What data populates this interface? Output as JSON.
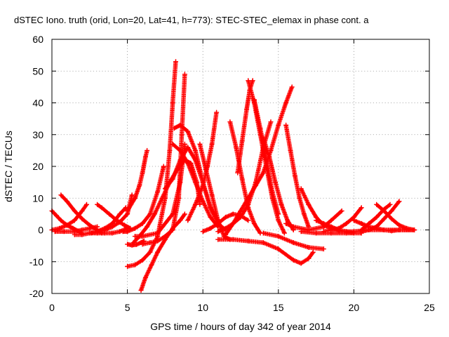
{
  "chart_data": {
    "type": "scatter",
    "title": "dSTEC Iono. truth (orid, Lon=20, Lat=41, h=773): STEC-STEC_elemax in phase cont. a",
    "xlabel": "GPS time / hours of day 342 of year 2014",
    "ylabel": "dSTEC  / TECUs",
    "xlim": [
      0,
      25
    ],
    "ylim": [
      -20,
      60
    ],
    "x_ticks": [
      "0",
      "5",
      "10",
      "15",
      "20",
      "25"
    ],
    "y_ticks": [
      "-20",
      "-10",
      "0",
      "10",
      "20",
      "30",
      "40",
      "50",
      "60"
    ],
    "grid": true,
    "marker": "+",
    "color": "#ff0000",
    "series": [
      {
        "x": [
          0.0,
          0.3,
          0.6,
          1.0,
          1.4,
          1.8,
          2.0
        ],
        "y": [
          6.0,
          4.5,
          3.0,
          1.5,
          0.5,
          -0.5,
          -1.0
        ]
      },
      {
        "x": [
          0.0,
          0.5,
          1.0,
          1.5,
          2.0,
          2.3
        ],
        "y": [
          0.0,
          0.5,
          1.5,
          3.0,
          6.0,
          8.0
        ]
      },
      {
        "x": [
          0.6,
          1.0,
          1.5,
          2.0,
          2.5,
          3.0,
          3.3
        ],
        "y": [
          11.0,
          9.0,
          6.0,
          3.5,
          1.5,
          0.0,
          -1.0
        ]
      },
      {
        "x": [
          0.2,
          0.8,
          1.5,
          2.0,
          2.5,
          3.0
        ],
        "y": [
          -0.5,
          -0.5,
          -0.5,
          0.0,
          0.5,
          1.0
        ]
      },
      {
        "x": [
          1.5,
          2.0,
          2.5,
          3.0,
          3.5,
          4.0,
          4.5,
          4.9
        ],
        "y": [
          -1.5,
          -1.5,
          -1.0,
          -0.5,
          0.5,
          2.0,
          5.0,
          7.0
        ]
      },
      {
        "x": [
          3.0,
          3.3,
          3.8,
          4.3,
          4.8,
          5.2
        ],
        "y": [
          8.0,
          7.0,
          5.0,
          3.0,
          1.5,
          0.5
        ]
      },
      {
        "x": [
          3.0,
          3.5,
          4.0,
          4.5,
          5.0,
          5.3
        ],
        "y": [
          -0.5,
          0.0,
          1.0,
          2.5,
          5.0,
          11.0
        ]
      },
      {
        "x": [
          2.6,
          3.0,
          3.5,
          4.0,
          4.5,
          5.0
        ],
        "y": [
          -1.0,
          -1.0,
          -1.0,
          -1.0,
          -0.5,
          0.5
        ]
      },
      {
        "x": [
          4.7,
          5.0,
          5.5,
          6.0,
          6.5,
          7.0,
          7.4
        ],
        "y": [
          -0.5,
          -0.5,
          0.5,
          2.0,
          5.0,
          12.0,
          20.0
        ]
      },
      {
        "x": [
          5.0,
          5.5,
          5.8,
          6.0,
          6.2,
          6.3
        ],
        "y": [
          6.0,
          10.0,
          14.0,
          18.0,
          23.0,
          25.0
        ]
      },
      {
        "x": [
          5.0,
          5.3,
          5.6,
          5.9,
          6.1
        ],
        "y": [
          -4.5,
          -4.8,
          -4.6,
          -4.0,
          -3.5
        ]
      },
      {
        "x": [
          5.0,
          5.5,
          6.0,
          6.5,
          7.0,
          7.5,
          7.8,
          8.0,
          8.2
        ],
        "y": [
          -11.5,
          -11.0,
          -9.5,
          -7.0,
          -2.0,
          10.0,
          25.0,
          40.0,
          53.0
        ]
      },
      {
        "x": [
          5.9,
          6.2,
          6.6,
          7.0,
          7.5,
          8.0,
          8.5,
          8.8
        ],
        "y": [
          -19.0,
          -15.0,
          -11.0,
          -7.0,
          -3.0,
          0.5,
          3.0,
          5.0
        ]
      },
      {
        "x": [
          5.5,
          6.0,
          7.0,
          8.0,
          8.5,
          8.8
        ],
        "y": [
          -2.0,
          -2.0,
          -1.0,
          5.0,
          15.0,
          27.0
        ]
      },
      {
        "x": [
          6.0,
          6.5,
          7.0,
          7.5,
          8.0,
          8.4,
          8.6,
          8.8
        ],
        "y": [
          -4.5,
          -4.0,
          -3.5,
          -2.0,
          0.0,
          10.0,
          30.0,
          49.0
        ]
      },
      {
        "x": [
          5.4,
          5.8,
          6.3,
          6.8,
          7.3,
          7.8,
          8.3,
          8.8,
          9.2,
          9.6,
          9.8
        ],
        "y": [
          -4.0,
          -2.0,
          1.0,
          5.0,
          10.0,
          15.0,
          19.0,
          22.0,
          21.0,
          15.0,
          8.0
        ]
      },
      {
        "x": [
          8.1,
          8.5,
          9.0,
          9.5,
          10.0,
          10.5,
          11.0,
          11.5
        ],
        "y": [
          32.0,
          33.0,
          31.0,
          25.0,
          15.0,
          7.0,
          2.0,
          0.0
        ]
      },
      {
        "x": [
          8.0,
          8.5,
          9.0,
          9.5,
          10.0,
          10.5,
          11.0
        ],
        "y": [
          27.0,
          25.0,
          21.0,
          15.0,
          9.0,
          4.0,
          1.0
        ]
      },
      {
        "x": [
          7.5,
          8.0,
          8.5,
          9.0,
          9.5,
          10.0,
          10.5,
          11.0
        ],
        "y": [
          13.0,
          16.0,
          22.0,
          26.0,
          22.0,
          15.0,
          7.0,
          3.0
        ]
      },
      {
        "x": [
          9.0,
          9.5,
          10.0,
          10.3,
          10.6,
          10.9
        ],
        "y": [
          3.0,
          8.0,
          14.0,
          20.0,
          27.0,
          37.0
        ]
      },
      {
        "x": [
          9.8,
          10.2,
          10.6,
          11.0,
          11.4,
          11.8
        ],
        "y": [
          27.0,
          19.0,
          11.0,
          3.0,
          -2.0,
          -3.0
        ]
      },
      {
        "x": [
          10.0,
          10.5,
          11.0,
          11.5,
          12.0,
          12.5,
          13.0
        ],
        "y": [
          -0.5,
          0.5,
          2.0,
          4.0,
          5.0,
          4.5,
          3.0
        ]
      },
      {
        "x": [
          11.0,
          11.5,
          12.0,
          12.5,
          13.0,
          13.5,
          14.0,
          14.5
        ],
        "y": [
          -0.5,
          0.5,
          2.0,
          4.0,
          8.0,
          15.0,
          26.0,
          34.0
        ]
      },
      {
        "x": [
          11.8,
          12.2,
          12.6,
          13.0,
          13.4,
          13.8
        ],
        "y": [
          34.0,
          26.0,
          16.0,
          7.0,
          2.0,
          -1.0
        ]
      },
      {
        "x": [
          12.3,
          12.6,
          12.9,
          13.1,
          13.3
        ],
        "y": [
          18.0,
          28.0,
          38.0,
          44.0,
          47.0
        ]
      },
      {
        "x": [
          13.0,
          13.4,
          13.8,
          14.2,
          14.6,
          15.0,
          15.4
        ],
        "y": [
          47.0,
          40.0,
          30.0,
          20.0,
          10.0,
          3.0,
          -1.0
        ]
      },
      {
        "x": [
          13.4,
          13.8,
          14.2,
          14.6,
          15.0
        ],
        "y": [
          41.0,
          32.0,
          22.0,
          12.0,
          5.0
        ]
      },
      {
        "x": [
          14.0,
          14.4,
          14.8,
          15.2,
          15.6,
          16.0
        ],
        "y": [
          29.0,
          23.0,
          15.0,
          8.0,
          3.0,
          0.0
        ]
      },
      {
        "x": [
          11.5,
          12.0,
          12.5,
          13.0,
          13.5,
          14.0,
          14.5,
          15.0,
          15.5,
          15.9
        ],
        "y": [
          -1.5,
          2.0,
          6.0,
          10.0,
          14.0,
          18.0,
          25.0,
          33.0,
          40.0,
          45.0
        ]
      },
      {
        "x": [
          15.5,
          15.8,
          16.1,
          16.4,
          16.7,
          17.0
        ],
        "y": [
          33.0,
          25.0,
          17.0,
          10.0,
          5.0,
          1.0
        ]
      },
      {
        "x": [
          11.0,
          12.0,
          13.0,
          14.0,
          15.0,
          16.0,
          16.5,
          17.0,
          17.3
        ],
        "y": [
          -3.0,
          -3.0,
          -3.5,
          -4.0,
          -6.0,
          -9.5,
          -10.5,
          -9.0,
          -7.0
        ]
      },
      {
        "x": [
          14.0,
          15.0,
          16.0,
          17.0,
          18.0
        ],
        "y": [
          -1.0,
          -2.0,
          -4.0,
          -5.5,
          -6.0
        ]
      },
      {
        "x": [
          16.5,
          17.0,
          17.5,
          18.0,
          18.5,
          19.0
        ],
        "y": [
          13.0,
          8.0,
          4.0,
          1.5,
          0.5,
          0.0
        ]
      },
      {
        "x": [
          15.5,
          16.0,
          17.0,
          18.0,
          18.5,
          19.2
        ],
        "y": [
          2.0,
          1.0,
          0.0,
          1.0,
          3.0,
          6.0
        ]
      },
      {
        "x": [
          17.5,
          18.0,
          18.5,
          19.0,
          19.5,
          20.0
        ],
        "y": [
          3.0,
          2.0,
          1.0,
          0.0,
          -0.5,
          -1.0
        ]
      },
      {
        "x": [
          16.5,
          17.5,
          18.5,
          19.5,
          20.5
        ],
        "y": [
          -0.5,
          -1.0,
          -1.0,
          -1.0,
          -1.0
        ]
      },
      {
        "x": [
          18.0,
          19.0,
          19.5,
          20.0,
          20.5
        ],
        "y": [
          -0.5,
          0.5,
          2.0,
          4.0,
          7.0
        ]
      },
      {
        "x": [
          20.0,
          20.5,
          21.0,
          21.5,
          22.0,
          22.5,
          23.0,
          24.0
        ],
        "y": [
          3.0,
          2.0,
          1.0,
          0.5,
          0.0,
          -0.3,
          0.0,
          0.0
        ]
      },
      {
        "x": [
          20.5,
          21.0,
          21.5,
          22.0,
          22.4
        ],
        "y": [
          0.0,
          2.0,
          4.0,
          6.5,
          8.0
        ]
      },
      {
        "x": [
          21.5,
          22.0,
          22.5,
          23.0,
          23.5,
          24.0
        ],
        "y": [
          8.0,
          6.0,
          3.5,
          1.5,
          0.5,
          0.0
        ]
      },
      {
        "x": [
          20.5,
          21.0,
          21.5,
          22.0,
          22.5,
          23.0
        ],
        "y": [
          -0.5,
          0.0,
          1.0,
          3.5,
          6.0,
          9.0
        ]
      },
      {
        "x": [
          19.0,
          20.0,
          21.0,
          22.0,
          23.0,
          24.0
        ],
        "y": [
          -0.5,
          -0.5,
          0.0,
          0.0,
          0.0,
          0.0
        ]
      }
    ]
  }
}
